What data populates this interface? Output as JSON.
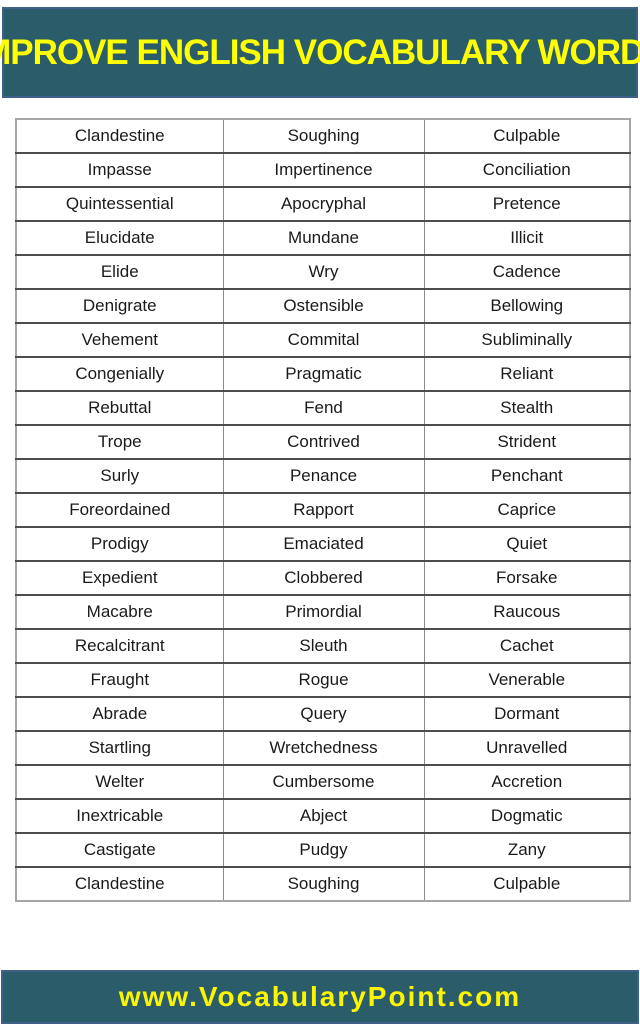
{
  "title": {
    "text": "IMPROVE ENGLISH VOCABULARY WORDS"
  },
  "word_table": {
    "columns": 3,
    "rows": [
      [
        "Clandestine",
        "Soughing",
        "Culpable"
      ],
      [
        "Impasse",
        "Impertinence",
        "Conciliation"
      ],
      [
        "Quintessential",
        "Apocryphal",
        "Pretence"
      ],
      [
        "Elucidate",
        "Mundane",
        "Illicit"
      ],
      [
        "Elide",
        "Wry",
        "Cadence"
      ],
      [
        "Denigrate",
        "Ostensible",
        "Bellowing"
      ],
      [
        "Vehement",
        "Commital",
        "Subliminally"
      ],
      [
        "Congenially",
        "Pragmatic",
        "Reliant"
      ],
      [
        "Rebuttal",
        "Fend",
        "Stealth"
      ],
      [
        "Trope",
        "Contrived",
        "Strident"
      ],
      [
        "Surly",
        "Penance",
        "Penchant"
      ],
      [
        "Foreordained",
        "Rapport",
        "Caprice"
      ],
      [
        "Prodigy",
        "Emaciated",
        "Quiet"
      ],
      [
        "Expedient",
        "Clobbered",
        "Forsake"
      ],
      [
        "Macabre",
        "Primordial",
        "Raucous"
      ],
      [
        "Recalcitrant",
        "Sleuth",
        "Cachet"
      ],
      [
        "Fraught",
        "Rogue",
        "Venerable"
      ],
      [
        "Abrade",
        "Query",
        "Dormant"
      ],
      [
        "Startling",
        "Wretchedness",
        "Unravelled"
      ],
      [
        "Welter",
        "Cumbersome",
        "Accretion"
      ],
      [
        "Inextricable",
        "Abject",
        "Dogmatic"
      ],
      [
        "Castigate",
        "Pudgy",
        "Zany"
      ],
      [
        "Clandestine",
        "Soughing",
        "Culpable"
      ]
    ]
  },
  "footer": {
    "website": "www.VocabularyPoint.com"
  },
  "colors": {
    "banner_bg": "#2A5C69",
    "banner_border": "#3E6089",
    "title_text": "#FFFF00",
    "footer_text": "#FCF500",
    "table_border_outer": "#A6A6A6",
    "table_border_horizontal": "#4D4D4D",
    "table_border_vertical": "#8C8C8C",
    "word_text": "#1A1A1A",
    "page_bg": "#FFFFFF"
  }
}
